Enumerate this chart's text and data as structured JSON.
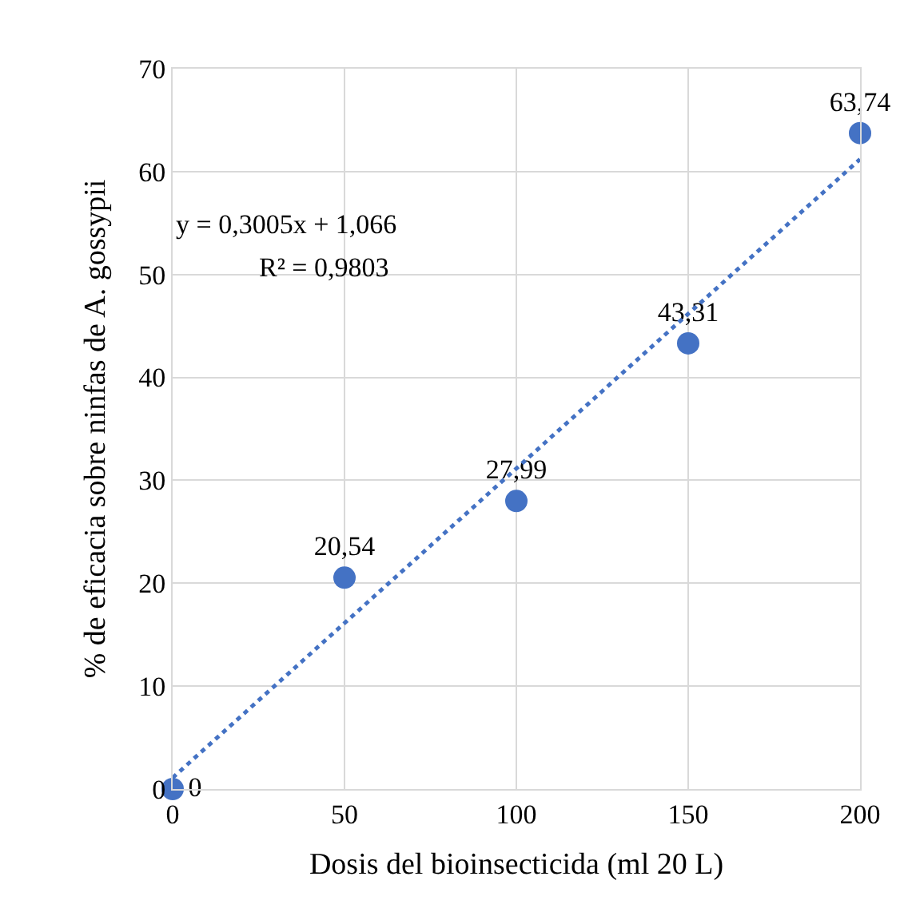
{
  "chart_data": {
    "type": "scatter",
    "xlabel": "Dosis del bioinsecticida (ml 20 L)",
    "ylabel": "% de eficacia sobre ninfas de A. gossypii",
    "x": [
      0,
      50,
      100,
      150,
      200
    ],
    "series": [
      {
        "color": "#4472c4",
        "values": [
          0,
          20.54,
          27.99,
          43.31,
          63.74
        ],
        "value_labels": [
          "0",
          "20,54",
          "27,99",
          "43,31",
          "63,74"
        ],
        "marker": "circle"
      },
      {
        "type": "line",
        "color": "#4472c4",
        "x": [
          0,
          200
        ],
        "values": [
          1.1,
          61.2
        ],
        "line_style": "dotted",
        "marker": "none"
      }
    ],
    "annotations": [
      "y = 0,3005x + 1,066",
      "R² = 0,9803"
    ],
    "xlim": [
      0,
      200
    ],
    "xticks": [
      0,
      50,
      100,
      150,
      200
    ],
    "ylim": [
      0,
      70
    ],
    "yticks": [
      0,
      10,
      20,
      30,
      40,
      50,
      60,
      70
    ],
    "grid": true
  }
}
